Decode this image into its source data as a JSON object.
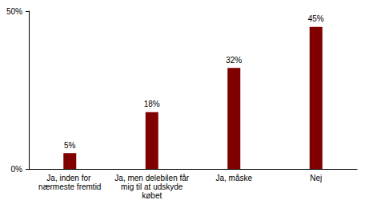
{
  "chart_data": {
    "type": "bar",
    "categories": [
      "Ja, inden for nærmeste fremtid",
      "Ja, men delebilen får mig til at udskyde købet",
      "Ja, måske",
      "Nej"
    ],
    "values": [
      5,
      18,
      32,
      45
    ],
    "value_labels": [
      "5%",
      "18%",
      "32%",
      "45%"
    ],
    "color": "#800000",
    "ylim": [
      0,
      50
    ],
    "yticks": [
      {
        "value": 0,
        "label": "0%"
      },
      {
        "value": 50,
        "label": "50%"
      }
    ],
    "grid": false,
    "data_labels": true
  }
}
